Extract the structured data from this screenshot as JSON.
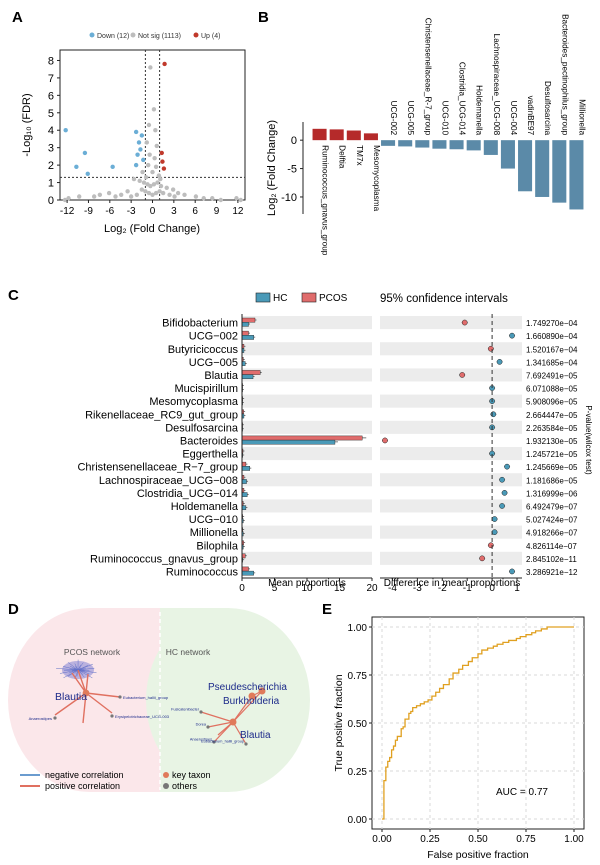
{
  "figure": {
    "panel_labels": {
      "a": "A",
      "b": "B",
      "c": "C",
      "d": "D",
      "e": "E"
    }
  },
  "panelA": {
    "legend": [
      {
        "label": "Down (12)",
        "color": "#6baed6"
      },
      {
        "label": "Not sig (1113)",
        "color": "#bdbdbd"
      },
      {
        "label": "Up (4)",
        "color": "#c0392b"
      }
    ],
    "xlabel": "Log₂ (Fold Change)",
    "ylabel": "-Log₁₀ (FDR)",
    "xticks": [
      "-12",
      "-9",
      "-6",
      "-3",
      "0",
      "3",
      "6",
      "9",
      "12"
    ],
    "yticks": [
      "0",
      "1",
      "2",
      "3",
      "4",
      "5",
      "6",
      "7",
      "8"
    ],
    "chart_data": {
      "type": "scatter",
      "xlim": [
        -13,
        13
      ],
      "ylim": [
        0,
        8.6
      ],
      "fdr_threshold": 1.3,
      "fc_thresholds": [
        -1,
        1
      ],
      "down": [
        [
          -12.2,
          4.0
        ],
        [
          -9.5,
          2.7
        ],
        [
          -9.1,
          1.5
        ],
        [
          -10.7,
          1.9
        ],
        [
          -5.6,
          1.9
        ],
        [
          -2.3,
          3.9
        ],
        [
          -2.3,
          2.0
        ],
        [
          -1.9,
          3.3
        ],
        [
          -1.5,
          3.7
        ],
        [
          -1.7,
          2.9
        ],
        [
          -2.1,
          2.6
        ],
        [
          -1.3,
          2.3
        ]
      ],
      "up": [
        [
          1.7,
          7.8
        ],
        [
          1.3,
          2.7
        ],
        [
          1.4,
          2.2
        ],
        [
          1.6,
          1.8
        ]
      ],
      "notsig": [
        [
          -0.3,
          7.6
        ],
        [
          0.2,
          5.2
        ],
        [
          -0.5,
          4.3
        ],
        [
          0.4,
          4.0
        ],
        [
          -0.8,
          3.3
        ],
        [
          0.6,
          3.1
        ],
        [
          -0.4,
          2.6
        ],
        [
          0.3,
          2.4
        ],
        [
          -0.6,
          2.0
        ],
        [
          0.5,
          1.9
        ],
        [
          0.0,
          1.6
        ],
        [
          -2.6,
          1.2
        ],
        [
          -1.8,
          1.1
        ],
        [
          -1.2,
          1.0
        ],
        [
          -0.7,
          0.9
        ],
        [
          -0.3,
          0.8
        ],
        [
          0.2,
          0.9
        ],
        [
          0.7,
          1.0
        ],
        [
          1.2,
          0.8
        ],
        [
          2.0,
          0.7
        ],
        [
          2.9,
          0.6
        ],
        [
          3.6,
          0.4
        ],
        [
          4.5,
          0.3
        ],
        [
          -3.5,
          0.5
        ],
        [
          -4.4,
          0.3
        ],
        [
          -5.2,
          0.2
        ],
        [
          -6.1,
          0.4
        ],
        [
          -7.4,
          0.3
        ],
        [
          -8.2,
          0.2
        ],
        [
          -10.3,
          0.2
        ],
        [
          -11.8,
          0.1
        ],
        [
          -12.3,
          0.0
        ],
        [
          6.1,
          0.2
        ],
        [
          7.2,
          0.1
        ],
        [
          8.4,
          0.1
        ],
        [
          9.6,
          0.0
        ],
        [
          11.8,
          0.1
        ],
        [
          12.4,
          0.0
        ],
        [
          -1.5,
          0.6
        ],
        [
          -1.0,
          0.5
        ],
        [
          -0.5,
          0.4
        ],
        [
          0.0,
          0.3
        ],
        [
          0.5,
          0.4
        ],
        [
          1.0,
          0.5
        ],
        [
          1.5,
          0.4
        ],
        [
          -2.2,
          0.3
        ],
        [
          2.4,
          0.3
        ],
        [
          -3.0,
          0.2
        ],
        [
          3.1,
          0.2
        ],
        [
          -0.9,
          1.3
        ],
        [
          0.9,
          1.4
        ],
        [
          -1.4,
          1.6
        ],
        [
          1.1,
          1.2
        ]
      ]
    }
  },
  "panelB": {
    "ylabel": "Log₂ (Fold Change)",
    "yticks": [
      "0",
      "-5",
      "-10"
    ],
    "chart_data": {
      "type": "bar",
      "ylim": [
        -13,
        3.2
      ],
      "categories": [
        "Ruminococcus_gnavus_group",
        "Delftia",
        "TM7x",
        "Mesomycoplasma",
        "UCG-002",
        "UCG-005",
        "Christensenellaceae_R-7_group",
        "UCG-010",
        "Clostridia_UCG-014",
        "Holdemanella",
        "Lachnospiraceae_UCG-008",
        "UCG-004",
        "vadinBE97",
        "Desulfosarcina",
        "Bacteroides_pectinophilus_group",
        "Millionella"
      ],
      "values": [
        2.0,
        1.9,
        1.7,
        1.2,
        -1.0,
        -1.1,
        -1.3,
        -1.5,
        -1.6,
        -1.8,
        -2.6,
        -5.0,
        -9.0,
        -10.0,
        -11.0,
        -12.2
      ],
      "colors": {
        "up": "#b52a2a",
        "down": "#5b8aa8"
      }
    }
  },
  "panelC": {
    "legend": [
      {
        "label": "HC",
        "color": "#4a9ab8"
      },
      {
        "label": "PCOS",
        "color": "#e06c6c"
      }
    ],
    "ci_title": "95% confidence intervals",
    "xlabel_left": "Mean proportions",
    "xlabel_right": "Difference in mean proportions",
    "pvalue_label": "P-value(wilcox test)",
    "left_ticks": [
      "0",
      "5",
      "10",
      "15",
      "20"
    ],
    "right_ticks": [
      "-4",
      "-3",
      "-2",
      "-1",
      "0",
      "1"
    ],
    "chart_data": {
      "type": "bar",
      "categories": [
        "Bifidobacterium",
        "UCG−002",
        "Butyricicoccus",
        "UCG−005",
        "Blautia",
        "Mucispirillum",
        "Mesomycoplasma",
        "Rikenellaceae_RC9_gut_group",
        "Desulfosarcina",
        "Bacteroides",
        "Eggerthella",
        "Christensenellaceae_R−7_group",
        "Lachnospiraceae_UCG−008",
        "Clostridia_UCG−014",
        "Holdemanella",
        "UCG−010",
        "Millionella",
        "Bilophila",
        "Ruminococcus_gnavus_group",
        "Ruminococcus"
      ],
      "series": [
        {
          "name": "HC",
          "values": [
            1.0,
            1.8,
            0.3,
            0.5,
            1.7,
            0.05,
            0.05,
            0.3,
            0.05,
            14.3,
            0.1,
            1.2,
            0.7,
            0.8,
            0.6,
            0.2,
            0.2,
            0.2,
            0.1,
            1.8
          ]
        },
        {
          "name": "PCOS",
          "values": [
            2.0,
            1.0,
            0.3,
            0.2,
            2.8,
            0.05,
            0.1,
            0.25,
            0.05,
            18.5,
            0.15,
            0.6,
            0.3,
            0.3,
            0.2,
            0.1,
            0.1,
            0.25,
            0.5,
            1.0
          ]
        }
      ],
      "differences": [
        -1.1,
        0.8,
        -0.05,
        0.3,
        -1.2,
        0.0,
        0.0,
        0.05,
        0.0,
        -4.3,
        0.0,
        0.6,
        0.4,
        0.5,
        0.4,
        0.1,
        0.1,
        -0.05,
        -0.4,
        0.8
      ],
      "pvalues": [
        "1.749270e−04",
        "1.660890e−04",
        "1.520167e−04",
        "1.341685e−04",
        "7.692491e−05",
        "6.071088e−05",
        "5.908096e−05",
        "2.664447e−05",
        "2.263584e−05",
        "1.932130e−05",
        "1.245721e−05",
        "1.245669e−05",
        "1.181686e−05",
        "1.316999e−06",
        "6.492479e−07",
        "5.027424e−07",
        "4.918266e−07",
        "4.826114e−07",
        "2.845102e−11",
        "3.286921e−12"
      ],
      "xlim_left": [
        0,
        20
      ],
      "xlim_right": [
        -4.5,
        1.2
      ]
    }
  },
  "panelD": {
    "pcos_title": "PCOS network",
    "hc_title": "HC network",
    "pcos_hub": "Blautia",
    "pcos_nodes": [
      "Eubacterium_hallii_group",
      "Anaerostipes",
      "Erysipelotrichaceae_UCG-003"
    ],
    "hc_hubs": [
      "Pseudescherichia",
      "Burkholderia",
      "Blautia"
    ],
    "hc_nodes": [
      "Fusicatenibacter",
      "Dorea",
      "Anaerostipes",
      "Eubacterium_hallii_group"
    ],
    "legend": {
      "neg": "negative correlation",
      "pos": "positive correlation",
      "key": "key taxon",
      "others": "others"
    }
  },
  "panelE": {
    "xlabel": "False positive fraction",
    "ylabel": "True positive fraction",
    "auc": "AUC = 0.77",
    "xticks": [
      "0.00",
      "0.25",
      "0.50",
      "0.75",
      "1.00"
    ],
    "yticks": [
      "0.00",
      "0.25",
      "0.50",
      "0.75",
      "1.00"
    ],
    "chart_data": {
      "type": "line",
      "xlim": [
        0,
        1
      ],
      "ylim": [
        0,
        1
      ],
      "color": "#e0a020",
      "x": [
        0,
        0.01,
        0.01,
        0.02,
        0.02,
        0.03,
        0.04,
        0.05,
        0.06,
        0.07,
        0.08,
        0.1,
        0.11,
        0.12,
        0.14,
        0.15,
        0.16,
        0.18,
        0.2,
        0.22,
        0.24,
        0.26,
        0.28,
        0.3,
        0.32,
        0.35,
        0.37,
        0.4,
        0.42,
        0.45,
        0.47,
        0.5,
        0.52,
        0.55,
        0.58,
        0.6,
        0.63,
        0.66,
        0.7,
        0.72,
        0.75,
        0.78,
        0.8,
        0.83,
        0.86,
        0.9,
        0.95,
        1.0
      ],
      "y": [
        0,
        0.1,
        0.2,
        0.22,
        0.27,
        0.3,
        0.32,
        0.36,
        0.38,
        0.41,
        0.43,
        0.47,
        0.48,
        0.52,
        0.55,
        0.56,
        0.58,
        0.59,
        0.6,
        0.61,
        0.62,
        0.64,
        0.66,
        0.68,
        0.7,
        0.73,
        0.76,
        0.78,
        0.8,
        0.82,
        0.84,
        0.86,
        0.88,
        0.89,
        0.9,
        0.91,
        0.92,
        0.93,
        0.94,
        0.95,
        0.96,
        0.97,
        0.98,
        0.99,
        1.0,
        1.0,
        1.0,
        1.0
      ]
    }
  }
}
